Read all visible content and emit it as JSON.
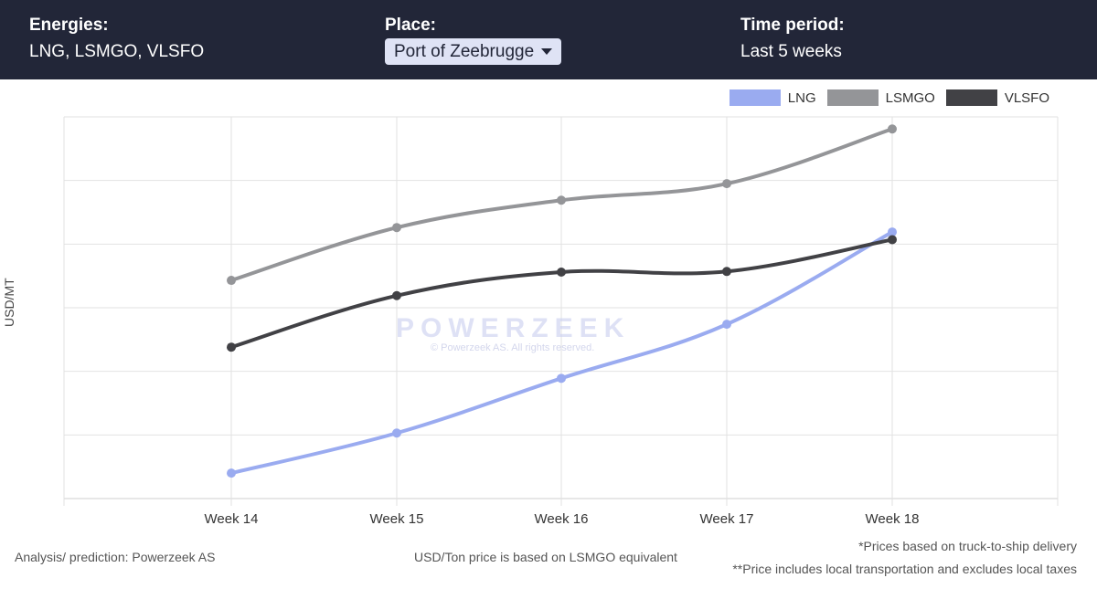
{
  "filters": {
    "energies": {
      "label": "Energies:",
      "value": "LNG, LSMGO, VLSFO"
    },
    "place": {
      "label": "Place:",
      "value": "Port of Zeebrugge"
    },
    "time_period": {
      "label": "Time period:",
      "value": "Last 5 weeks"
    }
  },
  "watermark": {
    "brand": "POWERZEEK",
    "copyright": "© Powerzeek AS. All rights reserved."
  },
  "footer": {
    "analysis": "Analysis/ prediction: Powerzeek AS",
    "price_basis": "USD/Ton price is based on LSMGO equivalent",
    "note1": "*Prices based on truck-to-ship delivery",
    "note2": "**Price includes local transportation and excludes local taxes"
  },
  "chart_data": {
    "type": "line",
    "ylabel": "USD/MT",
    "categories": [
      "Week 14",
      "Week 15",
      "Week 16",
      "Week 17",
      "Week 18"
    ],
    "ylim": [
      0,
      6
    ],
    "grid": true,
    "legend_position": "top-right",
    "series": [
      {
        "name": "LNG",
        "color": "#9aabf0",
        "values": [
          0.4,
          1.03,
          1.89,
          2.74,
          4.19
        ]
      },
      {
        "name": "LSMGO",
        "color": "#949598",
        "values": [
          3.43,
          4.26,
          4.69,
          4.95,
          5.81
        ]
      },
      {
        "name": "VLSFO",
        "color": "#414145",
        "values": [
          2.38,
          3.19,
          3.56,
          3.57,
          4.07
        ]
      }
    ]
  }
}
